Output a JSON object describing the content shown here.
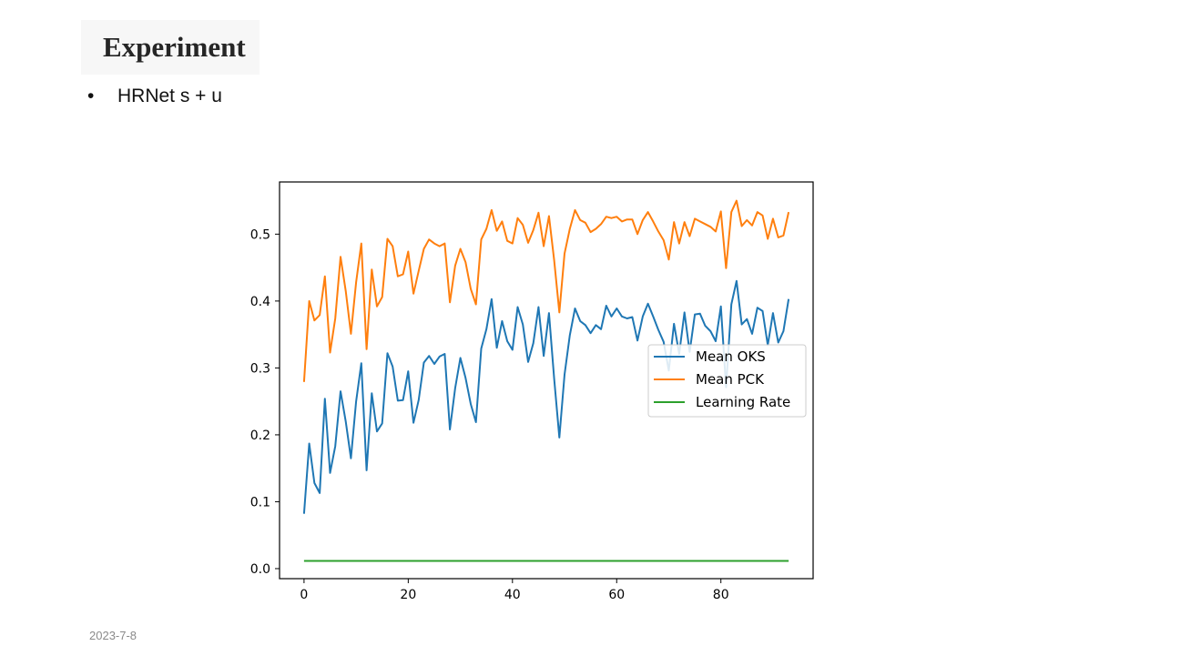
{
  "slide": {
    "title": "Experiment",
    "bullet_symbol": "•",
    "bullet_text": "HRNet s + u",
    "date": "2023-7-8"
  },
  "chart_data": {
    "type": "line",
    "title": "",
    "xlabel": "",
    "ylabel": "",
    "xlim": [
      -4.7,
      97.7
    ],
    "ylim": [
      -0.015,
      0.578
    ],
    "xticks": [
      0,
      20,
      40,
      60,
      80
    ],
    "yticks": [
      0.0,
      0.1,
      0.2,
      0.3,
      0.4,
      0.5
    ],
    "ytick_labels": [
      "0.0",
      "0.1",
      "0.2",
      "0.3",
      "0.4",
      "0.5"
    ],
    "grid": false,
    "legend_position": "center-right",
    "x": [
      0,
      1,
      2,
      3,
      4,
      5,
      6,
      7,
      8,
      9,
      10,
      11,
      12,
      13,
      14,
      15,
      16,
      17,
      18,
      19,
      20,
      21,
      22,
      23,
      24,
      25,
      26,
      27,
      28,
      29,
      30,
      31,
      32,
      33,
      34,
      35,
      36,
      37,
      38,
      39,
      40,
      41,
      42,
      43,
      44,
      45,
      46,
      47,
      48,
      49,
      50,
      51,
      52,
      53,
      54,
      55,
      56,
      57,
      58,
      59,
      60,
      61,
      62,
      63,
      64,
      65,
      66,
      67,
      68,
      69,
      70,
      71,
      72,
      73,
      74,
      75,
      76,
      77,
      78,
      79,
      80,
      81,
      82,
      83,
      84,
      85,
      86,
      87,
      88,
      89,
      90,
      91,
      92,
      93
    ],
    "series": [
      {
        "name": "Mean OKS",
        "color": "#1f77b4",
        "values": [
          0.082,
          0.187,
          0.128,
          0.113,
          0.254,
          0.143,
          0.183,
          0.265,
          0.22,
          0.165,
          0.25,
          0.307,
          0.147,
          0.262,
          0.205,
          0.217,
          0.322,
          0.302,
          0.251,
          0.252,
          0.295,
          0.218,
          0.252,
          0.308,
          0.318,
          0.306,
          0.317,
          0.321,
          0.208,
          0.27,
          0.315,
          0.285,
          0.246,
          0.219,
          0.329,
          0.358,
          0.403,
          0.33,
          0.37,
          0.34,
          0.327,
          0.391,
          0.365,
          0.309,
          0.337,
          0.391,
          0.318,
          0.382,
          0.284,
          0.196,
          0.29,
          0.349,
          0.389,
          0.37,
          0.364,
          0.352,
          0.364,
          0.358,
          0.393,
          0.377,
          0.389,
          0.377,
          0.374,
          0.376,
          0.341,
          0.377,
          0.396,
          0.377,
          0.357,
          0.339,
          0.296,
          0.366,
          0.321,
          0.383,
          0.324,
          0.38,
          0.381,
          0.363,
          0.355,
          0.34,
          0.392,
          0.271,
          0.395,
          0.43,
          0.365,
          0.373,
          0.351,
          0.39,
          0.385,
          0.334,
          0.382,
          0.338,
          0.355,
          0.403
        ]
      },
      {
        "name": "Mean PCK",
        "color": "#ff7f0e",
        "values": [
          0.279,
          0.4,
          0.371,
          0.379,
          0.437,
          0.323,
          0.374,
          0.466,
          0.415,
          0.351,
          0.428,
          0.486,
          0.328,
          0.447,
          0.392,
          0.406,
          0.493,
          0.482,
          0.437,
          0.44,
          0.474,
          0.411,
          0.445,
          0.478,
          0.492,
          0.486,
          0.482,
          0.486,
          0.398,
          0.453,
          0.478,
          0.458,
          0.418,
          0.395,
          0.492,
          0.508,
          0.536,
          0.505,
          0.519,
          0.49,
          0.486,
          0.524,
          0.514,
          0.487,
          0.506,
          0.532,
          0.482,
          0.527,
          0.461,
          0.383,
          0.471,
          0.508,
          0.536,
          0.521,
          0.517,
          0.503,
          0.508,
          0.515,
          0.526,
          0.524,
          0.526,
          0.519,
          0.522,
          0.522,
          0.5,
          0.521,
          0.533,
          0.519,
          0.504,
          0.491,
          0.462,
          0.518,
          0.486,
          0.518,
          0.497,
          0.523,
          0.519,
          0.515,
          0.511,
          0.504,
          0.534,
          0.449,
          0.533,
          0.55,
          0.512,
          0.521,
          0.513,
          0.533,
          0.528,
          0.493,
          0.523,
          0.495,
          0.498,
          0.533
        ]
      },
      {
        "name": "Learning Rate",
        "color": "#2ca02c",
        "values": [
          0.0115,
          0.0115,
          0.0115,
          0.0115,
          0.0115,
          0.0115,
          0.0115,
          0.0115,
          0.0115,
          0.0115,
          0.0115,
          0.0115,
          0.0115,
          0.0115,
          0.0115,
          0.0115,
          0.0115,
          0.0115,
          0.0115,
          0.0115,
          0.0115,
          0.0115,
          0.0115,
          0.0115,
          0.0115,
          0.0115,
          0.0115,
          0.0115,
          0.0115,
          0.0115,
          0.0115,
          0.0115,
          0.0115,
          0.0115,
          0.0115,
          0.0115,
          0.0115,
          0.0115,
          0.0115,
          0.0115,
          0.0115,
          0.0115,
          0.0115,
          0.0115,
          0.0115,
          0.0115,
          0.0115,
          0.0115,
          0.0115,
          0.0115,
          0.0115,
          0.0115,
          0.0115,
          0.0115,
          0.0115,
          0.0115,
          0.0115,
          0.0115,
          0.0115,
          0.0115,
          0.0115,
          0.0115,
          0.0115,
          0.0115,
          0.0115,
          0.0115,
          0.0115,
          0.0115,
          0.0115,
          0.0115,
          0.0115,
          0.0115,
          0.0115,
          0.0115,
          0.0115,
          0.0115,
          0.0115,
          0.0115,
          0.0115,
          0.0115,
          0.0115,
          0.0115,
          0.0115,
          0.0115,
          0.0115,
          0.0115,
          0.0115,
          0.0115,
          0.0115,
          0.0115,
          0.0115,
          0.0115,
          0.0115,
          0.0115
        ]
      }
    ]
  }
}
